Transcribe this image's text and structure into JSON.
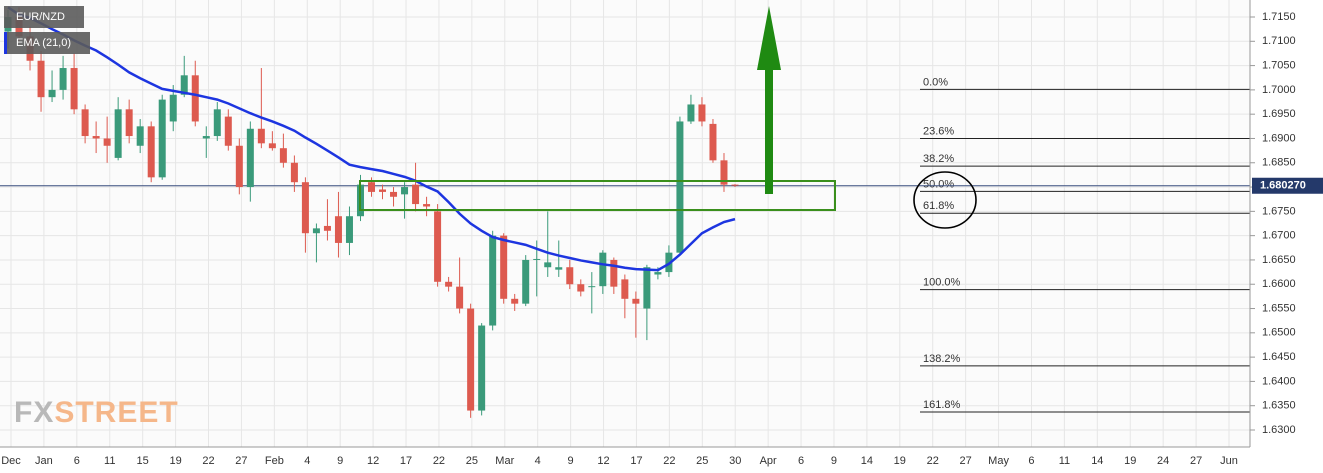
{
  "chart_data": {
    "type": "candlestick",
    "symbol": "EUR/NZD",
    "indicator": "EMA (21,0)",
    "watermark": [
      "FX",
      "STREET"
    ],
    "up_color": "#3a9a7a",
    "down_color": "#dd5a4f",
    "ema_color": "#1d35e0",
    "ylim": [
      1.6265,
      1.7185
    ],
    "yticks": [
      {
        "value": 1.63,
        "label": "1.6300"
      },
      {
        "value": 1.635,
        "label": "1.6350"
      },
      {
        "value": 1.64,
        "label": "1.6400"
      },
      {
        "value": 1.645,
        "label": "1.6450"
      },
      {
        "value": 1.65,
        "label": "1.6500"
      },
      {
        "value": 1.655,
        "label": "1.6550"
      },
      {
        "value": 1.66,
        "label": "1.6600"
      },
      {
        "value": 1.665,
        "label": "1.6650"
      },
      {
        "value": 1.67,
        "label": "1.6700"
      },
      {
        "value": 1.675,
        "label": "1.6750"
      },
      {
        "value": 1.68,
        "label": "1.6800"
      },
      {
        "value": 1.685,
        "label": "1.6850"
      },
      {
        "value": 1.69,
        "label": "1.6900"
      },
      {
        "value": 1.695,
        "label": "1.6950"
      },
      {
        "value": 1.7,
        "label": "1.7000"
      },
      {
        "value": 1.705,
        "label": "1.7050"
      },
      {
        "value": 1.71,
        "label": "1.7100"
      },
      {
        "value": 1.715,
        "label": "1.7150"
      }
    ],
    "xtick_labels": [
      "Dec",
      "Jan",
      "6",
      "11",
      "15",
      "19",
      "22",
      "27",
      "Feb",
      "4",
      "9",
      "12",
      "17",
      "22",
      "25",
      "Mar",
      "4",
      "9",
      "12",
      "17",
      "22",
      "25",
      "30",
      "Apr",
      "6",
      "9",
      "14",
      "19",
      "22",
      "27",
      "May",
      "6",
      "11",
      "14",
      "19",
      "24",
      "27",
      "Jun"
    ],
    "grid": true,
    "last_price": {
      "value": 1.68027,
      "label": "1.680270"
    },
    "open": [
      1.712,
      1.715,
      1.711,
      1.706,
      1.6985,
      1.7,
      1.7045,
      1.696,
      1.6905,
      1.69,
      1.686,
      1.696,
      1.6885,
      1.6925,
      1.682,
      1.6935,
      1.699,
      1.703,
      1.69,
      1.6905,
      1.6945,
      1.6885,
      1.68,
      1.692,
      1.689,
      1.688,
      1.685,
      1.681,
      1.6705,
      1.672,
      1.674,
      1.6685,
      1.674,
      1.681,
      1.6795,
      1.679,
      1.6785,
      1.6805,
      1.6765,
      1.675,
      1.6605,
      1.6595,
      1.655,
      1.634,
      1.6515,
      1.67,
      1.657,
      1.656,
      1.665,
      1.6635,
      1.663,
      1.6635,
      1.66,
      1.6595,
      1.6596,
      1.665,
      1.661,
      1.657,
      1.655,
      1.662,
      1.6625,
      1.6665,
      1.6935,
      1.697,
      1.693,
      1.6855,
      1.6805
    ],
    "high": [
      1.7165,
      1.717,
      1.713,
      1.708,
      1.704,
      1.707,
      1.7075,
      1.697,
      1.6935,
      1.6945,
      1.6985,
      1.698,
      1.694,
      1.6935,
      1.699,
      1.701,
      1.707,
      1.706,
      1.6925,
      1.6975,
      1.696,
      1.69,
      1.6935,
      1.7045,
      1.6915,
      1.691,
      1.6865,
      1.682,
      1.6725,
      1.6775,
      1.679,
      1.676,
      1.6825,
      1.682,
      1.6805,
      1.68,
      1.681,
      1.685,
      1.678,
      1.6765,
      1.6615,
      1.6655,
      1.656,
      1.652,
      1.671,
      1.6705,
      1.658,
      1.666,
      1.669,
      1.675,
      1.669,
      1.665,
      1.661,
      1.6625,
      1.667,
      1.6655,
      1.662,
      1.6585,
      1.664,
      1.6635,
      1.668,
      1.6945,
      1.699,
      1.6985,
      1.694,
      1.687,
      1.6806
    ],
    "low": [
      1.7085,
      1.71,
      1.704,
      1.6955,
      1.6975,
      1.698,
      1.695,
      1.689,
      1.687,
      1.685,
      1.6855,
      1.689,
      1.687,
      1.681,
      1.6815,
      1.6915,
      1.6985,
      1.6925,
      1.686,
      1.6895,
      1.6875,
      1.6785,
      1.677,
      1.688,
      1.6875,
      1.684,
      1.679,
      1.6665,
      1.6645,
      1.669,
      1.6655,
      1.666,
      1.673,
      1.678,
      1.6775,
      1.676,
      1.6735,
      1.675,
      1.674,
      1.6595,
      1.6585,
      1.654,
      1.6325,
      1.633,
      1.6505,
      1.656,
      1.6545,
      1.6555,
      1.6575,
      1.6615,
      1.6615,
      1.659,
      1.6575,
      1.654,
      1.658,
      1.658,
      1.653,
      1.649,
      1.6485,
      1.661,
      1.6615,
      1.666,
      1.693,
      1.6925,
      1.685,
      1.679,
      1.68
    ],
    "close": [
      1.715,
      1.711,
      1.706,
      1.6985,
      1.7,
      1.7045,
      1.696,
      1.6905,
      1.69,
      1.6885,
      1.696,
      1.6905,
      1.6925,
      1.682,
      1.698,
      1.699,
      1.703,
      1.6935,
      1.6905,
      1.696,
      1.6885,
      1.68,
      1.692,
      1.689,
      1.688,
      1.685,
      1.681,
      1.6705,
      1.6715,
      1.671,
      1.6685,
      1.674,
      1.6805,
      1.679,
      1.679,
      1.678,
      1.68,
      1.6765,
      1.676,
      1.6605,
      1.6595,
      1.655,
      1.634,
      1.6515,
      1.67,
      1.657,
      1.656,
      1.665,
      1.6652,
      1.6645,
      1.6635,
      1.66,
      1.6585,
      1.6596,
      1.6665,
      1.6595,
      1.657,
      1.656,
      1.6635,
      1.6625,
      1.6665,
      1.6935,
      1.697,
      1.6935,
      1.6855,
      1.6805,
      1.6803
    ],
    "ema": [
      1.717,
      1.7155,
      1.7148,
      1.7137,
      1.7125,
      1.7114,
      1.7102,
      1.7091,
      1.7081,
      1.7067,
      1.7052,
      1.7036,
      1.7024,
      1.7013,
      1.7002,
      1.6998,
      1.6994,
      1.699,
      1.6985,
      1.698,
      1.6972,
      1.6962,
      1.6952,
      1.6943,
      1.6935,
      1.6926,
      1.6916,
      1.6902,
      1.6889,
      1.6875,
      1.6861,
      1.6846,
      1.6841,
      1.6837,
      1.6833,
      1.6827,
      1.6821,
      1.6813,
      1.6801,
      1.6791,
      1.6769,
      1.6745,
      1.6725,
      1.671,
      1.6697,
      1.6691,
      1.6686,
      1.6681,
      1.6673,
      1.6665,
      1.6659,
      1.6654,
      1.6649,
      1.6645,
      1.6641,
      1.6638,
      1.6634,
      1.6631,
      1.663,
      1.6629,
      1.6642,
      1.6661,
      1.6683,
      1.6705,
      1.6717,
      1.6728,
      1.6734
    ],
    "fib_levels": [
      {
        "label": "0.0%",
        "price": 1.7001
      },
      {
        "label": "23.6%",
        "price": 1.69
      },
      {
        "label": "38.2%",
        "price": 1.6843
      },
      {
        "label": "50.0%",
        "price": 1.6791
      },
      {
        "label": "61.8%",
        "price": 1.6746
      },
      {
        "label": "100.0%",
        "price": 1.6589
      },
      {
        "label": "138.2%",
        "price": 1.6432
      },
      {
        "label": "161.8%",
        "price": 1.6337
      }
    ]
  }
}
